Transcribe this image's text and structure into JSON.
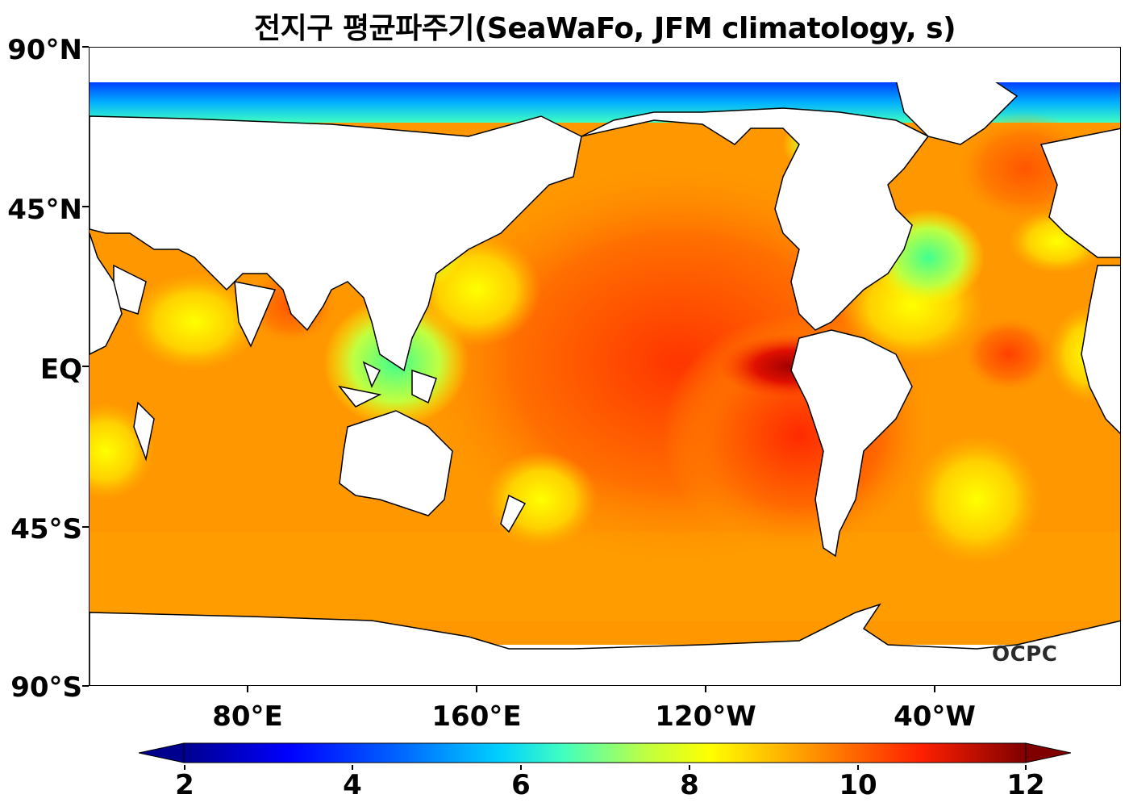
{
  "title": "전지구 평균파주기(SeaWaFo, JFM climatology, s)",
  "lat_labels": [
    "90°N",
    "45°N",
    "EQ",
    "45°S",
    "90°S"
  ],
  "lon_labels": [
    "80°E",
    "160°E",
    "120°W",
    "40°W"
  ],
  "colorbar": {
    "ticks": [
      "2",
      "4",
      "6",
      "8",
      "10",
      "12"
    ],
    "min": 2,
    "max": 12,
    "colors": [
      "#00008f",
      "#0000ff",
      "#0080ff",
      "#00ffff",
      "#80ff80",
      "#ffff00",
      "#ff8000",
      "#ff0000",
      "#800000"
    ],
    "extend": "both"
  },
  "watermark": "OCPC",
  "land_color": "#ffffff",
  "coastline_color": "#000000"
}
